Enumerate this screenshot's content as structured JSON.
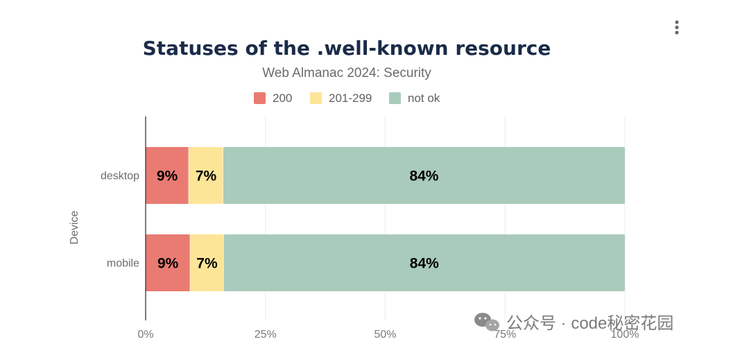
{
  "menu": {
    "icon": "kebab-menu-icon"
  },
  "watermark": {
    "text": "公众号 · code秘密花园",
    "icon": "wechat-icon"
  },
  "chart_data": {
    "type": "bar",
    "orientation": "horizontal",
    "stacked": true,
    "title": "Statuses of the .well-known resource",
    "subtitle": "Web Almanac 2024: Security",
    "xlabel": "",
    "ylabel": "Device",
    "xlim": [
      0,
      100
    ],
    "x_ticks": [
      "0%",
      "25%",
      "50%",
      "75%",
      "100%"
    ],
    "x_tick_values": [
      0,
      25,
      50,
      75,
      100
    ],
    "categories": [
      "desktop",
      "mobile"
    ],
    "legend_position": "top-center",
    "grid": true,
    "series": [
      {
        "name": "200",
        "color": "#e97b72",
        "values": [
          9,
          9.3
        ],
        "labels": [
          "9%",
          "9%"
        ]
      },
      {
        "name": "201-299",
        "color": "#fde598",
        "values": [
          7.2,
          7.0
        ],
        "labels": [
          "7%",
          "7%"
        ]
      },
      {
        "name": "not ok",
        "color": "#a9cbbb",
        "values": [
          83.8,
          83.7
        ],
        "labels": [
          "84%",
          "84%"
        ]
      }
    ]
  }
}
